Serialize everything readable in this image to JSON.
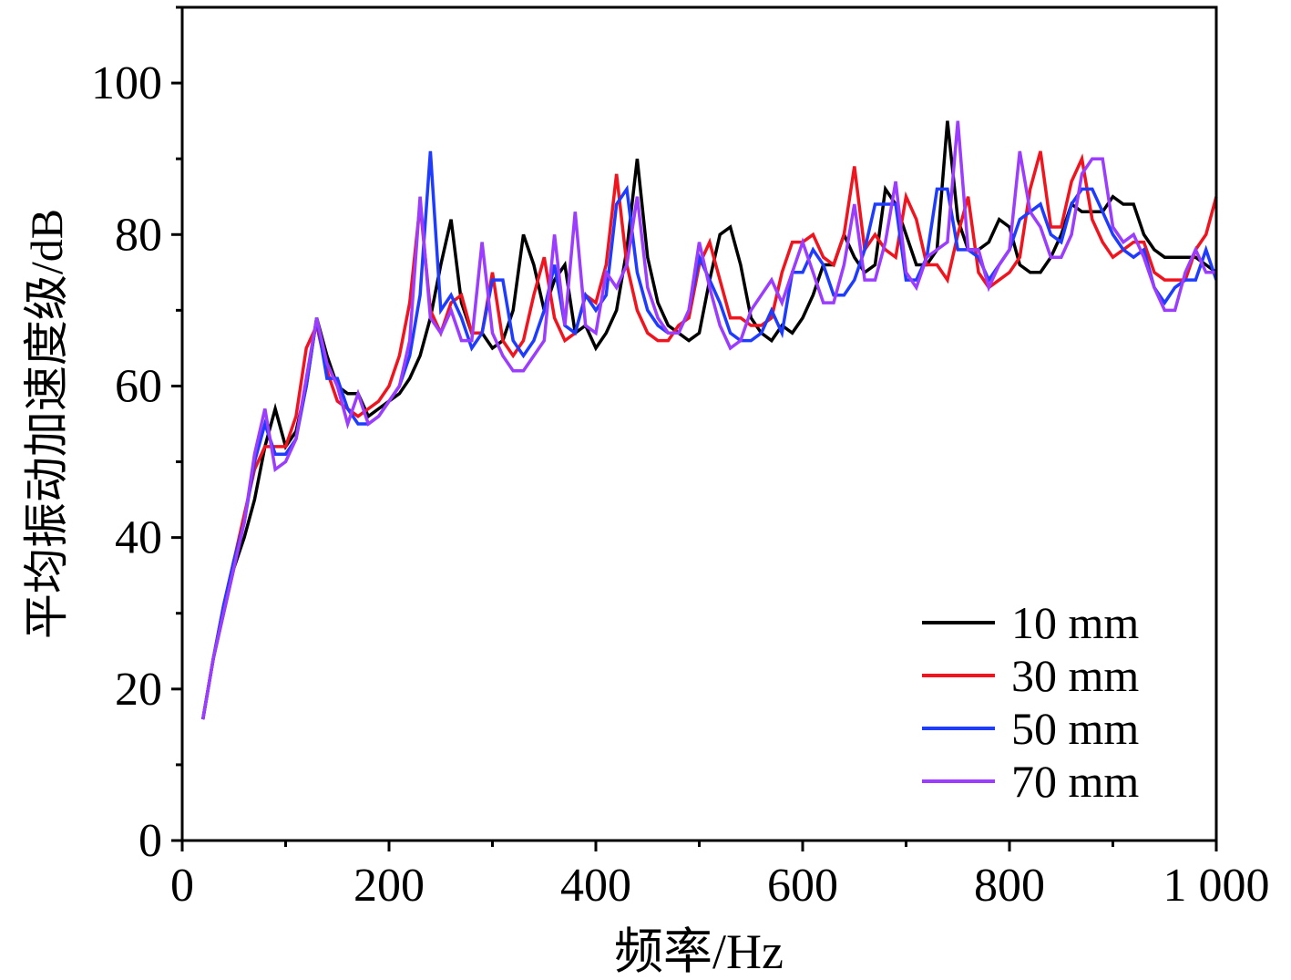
{
  "chart_data": {
    "type": "line",
    "title": "",
    "xlabel": "频率/Hz",
    "ylabel": "平均振动加速度级/dB",
    "xlim": [
      0,
      1000
    ],
    "ylim": [
      0,
      110
    ],
    "x_start": 20,
    "x_step": 10,
    "xticks": [
      0,
      200,
      400,
      600,
      800,
      1000
    ],
    "xtick_labels": [
      "0",
      "200",
      "400",
      "600",
      "800",
      "1 000"
    ],
    "yticks": [
      0,
      20,
      40,
      60,
      80,
      100
    ],
    "ytick_labels": [
      "0",
      "20",
      "40",
      "60",
      "80",
      "100"
    ],
    "grid": false,
    "legend_position": "bottom-right",
    "series": [
      {
        "name": "10 mm",
        "color": "#000000",
        "values": [
          16,
          24,
          30,
          36,
          40,
          45,
          52,
          57,
          52,
          54,
          60,
          69,
          64,
          60,
          59,
          59,
          56,
          57,
          58,
          59,
          61,
          64,
          69,
          76,
          82,
          71,
          67,
          67,
          65,
          66,
          70,
          80,
          76,
          70,
          74,
          76,
          67,
          68,
          65,
          67,
          70,
          78,
          90,
          77,
          71,
          68,
          67,
          66,
          67,
          74,
          80,
          81,
          76,
          69,
          67,
          66,
          68,
          67,
          69,
          72,
          76,
          76,
          80,
          77,
          75,
          76,
          86,
          84,
          80,
          76,
          76,
          78,
          95,
          82,
          78,
          78,
          79,
          82,
          81,
          76,
          75,
          75,
          77,
          80,
          84,
          83,
          83,
          83,
          85,
          84,
          84,
          80,
          78,
          77,
          77,
          77,
          77,
          76,
          75
        ]
      },
      {
        "name": "30 mm",
        "color": "#f0141e",
        "values": [
          16,
          24,
          31,
          37,
          43,
          49,
          52,
          52,
          52,
          56,
          65,
          68,
          62,
          58,
          57,
          56,
          57,
          58,
          60,
          64,
          71,
          84,
          70,
          67,
          71,
          72,
          67,
          67,
          75,
          66,
          64,
          66,
          72,
          77,
          69,
          66,
          67,
          72,
          71,
          76,
          88,
          76,
          70,
          67,
          66,
          66,
          68,
          69,
          76,
          79,
          74,
          69,
          69,
          68,
          68,
          69,
          75,
          79,
          79,
          80,
          77,
          76,
          80,
          89,
          78,
          80,
          78,
          77,
          85,
          82,
          76,
          76,
          74,
          80,
          85,
          75,
          73,
          74,
          75,
          77,
          86,
          91,
          81,
          81,
          87,
          90,
          82,
          79,
          77,
          78,
          79,
          79,
          75,
          74,
          74,
          74,
          78,
          80,
          85
        ]
      },
      {
        "name": "50 mm",
        "color": "#1e3cff",
        "values": [
          16,
          24,
          31,
          37,
          42,
          50,
          55,
          51,
          51,
          53,
          60,
          69,
          61,
          61,
          57,
          55,
          55,
          56,
          58,
          60,
          64,
          72,
          91,
          70,
          72,
          69,
          65,
          67,
          74,
          74,
          66,
          64,
          66,
          70,
          76,
          68,
          67,
          72,
          70,
          72,
          84,
          86,
          75,
          70,
          68,
          67,
          67,
          70,
          77,
          74,
          71,
          67,
          66,
          66,
          67,
          70,
          67,
          75,
          75,
          78,
          76,
          72,
          72,
          74,
          78,
          84,
          84,
          84,
          74,
          74,
          77,
          86,
          86,
          78,
          78,
          77,
          74,
          76,
          78,
          82,
          83,
          84,
          80,
          79,
          84,
          86,
          86,
          83,
          80,
          78,
          77,
          78,
          73,
          71,
          73,
          74,
          74,
          78,
          74
        ]
      },
      {
        "name": "70 mm",
        "color": "#9b3cff",
        "values": [
          16,
          24,
          30,
          36,
          42,
          51,
          57,
          49,
          50,
          53,
          61,
          69,
          63,
          60,
          55,
          59,
          55,
          56,
          58,
          60,
          66,
          85,
          69,
          67,
          70,
          66,
          66,
          79,
          67,
          64,
          62,
          62,
          64,
          66,
          80,
          68,
          83,
          68,
          67,
          75,
          73,
          76,
          85,
          73,
          69,
          67,
          67,
          70,
          79,
          73,
          68,
          65,
          66,
          70,
          72,
          74,
          71,
          75,
          79,
          75,
          71,
          71,
          76,
          84,
          74,
          74,
          79,
          87,
          75,
          73,
          77,
          78,
          79,
          95,
          78,
          78,
          73,
          76,
          78,
          91,
          83,
          81,
          77,
          77,
          80,
          88,
          90,
          90,
          81,
          79,
          80,
          77,
          73,
          70,
          70,
          75,
          78,
          75,
          75
        ]
      }
    ]
  }
}
